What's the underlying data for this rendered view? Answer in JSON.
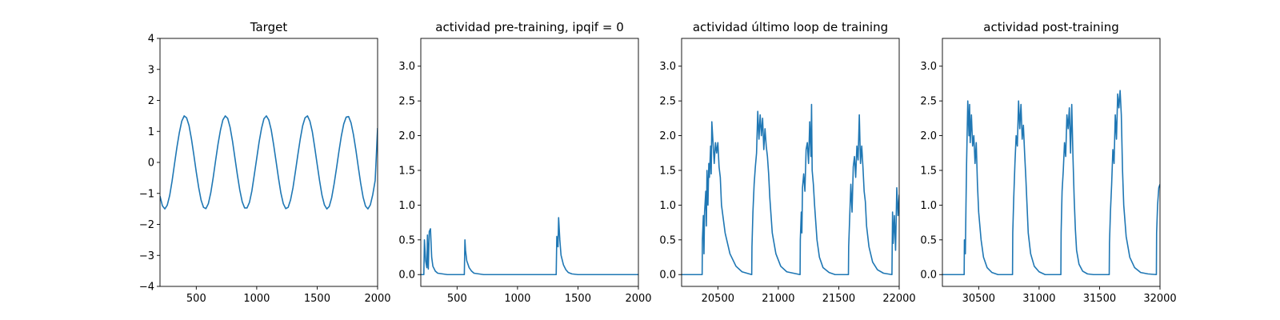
{
  "figure": {
    "background": "#ffffff",
    "line_color": "#1f77b4"
  },
  "chart_data": [
    {
      "type": "line",
      "title": "Target",
      "xlabel": "",
      "ylabel": "",
      "xlim": [
        200,
        2000
      ],
      "ylim": [
        -4,
        4
      ],
      "xticks": [
        500,
        1000,
        1500,
        2000
      ],
      "yticks": [
        -4,
        -3,
        -2,
        -1,
        0,
        1,
        2,
        3,
        4
      ],
      "grid": false,
      "series": [
        {
          "x": [
            200,
            220,
            240,
            260,
            280,
            300,
            320,
            340,
            360,
            380,
            400,
            420,
            440,
            460,
            480,
            500,
            520,
            540,
            560,
            580,
            600,
            620,
            640,
            660,
            680,
            700,
            720,
            740,
            760,
            780,
            800,
            820,
            840,
            860,
            880,
            900,
            920,
            940,
            960,
            980,
            1000,
            1020,
            1040,
            1060,
            1080,
            1100,
            1120,
            1140,
            1160,
            1180,
            1200,
            1220,
            1240,
            1260,
            1280,
            1300,
            1320,
            1340,
            1360,
            1380,
            1400,
            1420,
            1440,
            1460,
            1480,
            1500,
            1520,
            1540,
            1560,
            1580,
            1600,
            1620,
            1640,
            1660,
            1680,
            1700,
            1720,
            1740,
            1760,
            1780,
            1800,
            1820,
            1840,
            1860,
            1880,
            1900,
            1920,
            1940,
            1960,
            1980,
            2000
          ],
          "y": [
            -1.09,
            -1.4,
            -1.5,
            -1.38,
            -1.07,
            -0.6,
            -0.05,
            0.49,
            0.96,
            1.33,
            1.5,
            1.44,
            1.19,
            0.76,
            0.24,
            -0.31,
            -0.81,
            -1.22,
            -1.45,
            -1.49,
            -1.33,
            -0.98,
            -0.49,
            0.06,
            0.59,
            1.04,
            1.37,
            1.5,
            1.42,
            1.13,
            0.68,
            0.14,
            -0.4,
            -0.89,
            -1.27,
            -1.47,
            -1.47,
            -1.29,
            -0.92,
            -0.4,
            0.13,
            0.66,
            1.1,
            1.41,
            1.5,
            1.37,
            1.05,
            0.57,
            0.04,
            -0.5,
            -0.99,
            -1.33,
            -1.49,
            -1.45,
            -1.21,
            -0.82,
            -0.3,
            0.24,
            0.75,
            1.18,
            1.44,
            1.5,
            1.33,
            0.99,
            0.48,
            -0.06,
            -0.59,
            -1.06,
            -1.37,
            -1.5,
            -1.42,
            -1.14,
            -0.7,
            -0.19,
            0.35,
            0.85,
            1.24,
            1.46,
            1.48,
            1.28,
            0.9,
            0.41,
            -0.14,
            -0.67,
            -1.12,
            -1.41,
            -1.5,
            -1.37,
            -1.04,
            -0.58,
            1.11
          ]
        }
      ]
    },
    {
      "type": "line",
      "title": "actividad pre-training, ipqif = 0",
      "xlabel": "",
      "ylabel": "",
      "xlim": [
        200,
        2000
      ],
      "ylim": [
        -0.17,
        3.4
      ],
      "xticks": [
        500,
        1000,
        1500,
        2000
      ],
      "yticks": [
        0.0,
        0.5,
        1.0,
        1.5,
        2.0,
        2.5,
        3.0
      ],
      "grid": false,
      "series": [
        {
          "x": [
            200,
            225,
            230,
            240,
            250,
            255,
            262,
            270,
            280,
            290,
            300,
            320,
            340,
            380,
            420,
            560,
            565,
            570,
            580,
            600,
            620,
            640,
            680,
            720,
            1320,
            1325,
            1335,
            1340,
            1350,
            1360,
            1380,
            1400,
            1420,
            1450,
            1500,
            2000
          ],
          "y": [
            0,
            0,
            0.5,
            0.2,
            0.1,
            0.57,
            0.08,
            0.62,
            0.66,
            0.25,
            0.12,
            0.05,
            0.02,
            0.01,
            0,
            0,
            0.5,
            0.35,
            0.2,
            0.1,
            0.05,
            0.02,
            0.01,
            0,
            0,
            0.55,
            0.4,
            0.82,
            0.5,
            0.28,
            0.14,
            0.07,
            0.03,
            0.01,
            0,
            0
          ]
        }
      ]
    },
    {
      "type": "line",
      "title": "actividad último loop de training",
      "xlabel": "",
      "ylabel": "",
      "xlim": [
        20200,
        22000
      ],
      "ylim": [
        -0.17,
        3.4
      ],
      "xticks": [
        20500,
        21000,
        21500,
        22000
      ],
      "yticks": [
        0.0,
        0.5,
        1.0,
        1.5,
        2.0,
        2.5,
        3.0
      ],
      "grid": false,
      "series": [
        {
          "x": [
            20200,
            20370,
            20372,
            20380,
            20385,
            20390,
            20400,
            20405,
            20410,
            20418,
            20425,
            20430,
            20440,
            20445,
            20450,
            20460,
            20470,
            20480,
            20490,
            20500,
            20510,
            20520,
            20530,
            20560,
            20600,
            20650,
            20700,
            20780,
            20782,
            20790,
            20800,
            20810,
            20820,
            20830,
            20840,
            20850,
            20860,
            20870,
            20880,
            20890,
            20900,
            20910,
            20920,
            20930,
            20950,
            20980,
            21020,
            21070,
            21180,
            21182,
            21190,
            21195,
            21200,
            21210,
            21220,
            21230,
            21240,
            21250,
            21260,
            21270,
            21275,
            21280,
            21290,
            21300,
            21310,
            21320,
            21340,
            21370,
            21420,
            21470,
            21580,
            21582,
            21590,
            21600,
            21610,
            21620,
            21630,
            21640,
            21650,
            21660,
            21670,
            21680,
            21690,
            21700,
            21710,
            21720,
            21730,
            21750,
            21780,
            21820,
            21870,
            21940,
            21945,
            21950,
            21960,
            21970,
            21980,
            21990,
            22000
          ],
          "y": [
            0,
            0,
            0.5,
            0.85,
            0.3,
            0.9,
            1.2,
            0.7,
            1.5,
            1.0,
            1.6,
            1.4,
            1.85,
            1.45,
            2.2,
            1.9,
            1.6,
            1.9,
            1.75,
            1.9,
            1.55,
            1.4,
            1.0,
            0.6,
            0.3,
            0.12,
            0.04,
            0,
            0.4,
            0.9,
            1.3,
            1.55,
            1.75,
            2.35,
            1.95,
            2.3,
            2.0,
            2.25,
            1.8,
            2.1,
            1.85,
            1.7,
            1.45,
            1.1,
            0.6,
            0.3,
            0.12,
            0.04,
            0,
            0.5,
            0.9,
            0.6,
            1.25,
            1.45,
            1.2,
            1.8,
            1.9,
            1.6,
            2.2,
            1.7,
            2.45,
            1.5,
            1.3,
            1.0,
            0.75,
            0.5,
            0.25,
            0.1,
            0.03,
            0,
            0,
            0.4,
            0.8,
            1.3,
            0.9,
            1.55,
            1.7,
            1.4,
            1.85,
            1.65,
            2.3,
            1.6,
            1.85,
            1.55,
            1.2,
            1.05,
            0.7,
            0.4,
            0.18,
            0.07,
            0.02,
            0,
            0.9,
            0.45,
            0.85,
            0.35,
            1.25,
            0.85,
            1.15
          ]
        }
      ]
    },
    {
      "type": "line",
      "title": "actividad post-training",
      "xlabel": "",
      "ylabel": "",
      "xlim": [
        30200,
        32000
      ],
      "ylim": [
        -0.17,
        3.4
      ],
      "xticks": [
        30500,
        31000,
        31500,
        32000
      ],
      "yticks": [
        0.0,
        0.5,
        1.0,
        1.5,
        2.0,
        2.5,
        3.0
      ],
      "grid": false,
      "series": [
        {
          "x": [
            30200,
            30380,
            30382,
            30390,
            30395,
            30400,
            30410,
            30420,
            30425,
            30430,
            30440,
            30450,
            30460,
            30470,
            30480,
            30490,
            30500,
            30520,
            30540,
            30570,
            30610,
            30660,
            30780,
            30782,
            30790,
            30800,
            30810,
            30820,
            30830,
            30840,
            30850,
            30860,
            30870,
            30880,
            30890,
            30900,
            30910,
            30930,
            30960,
            31000,
            31050,
            31180,
            31182,
            31190,
            31200,
            31210,
            31220,
            31230,
            31240,
            31250,
            31260,
            31270,
            31280,
            31290,
            31300,
            31310,
            31330,
            31360,
            31400,
            31450,
            31580,
            31582,
            31590,
            31600,
            31610,
            31620,
            31630,
            31640,
            31650,
            31660,
            31670,
            31680,
            31690,
            31700,
            31720,
            31750,
            31790,
            31840,
            31900,
            31970,
            31972,
            31980,
            31990,
            32000
          ],
          "y": [
            0,
            0,
            0.5,
            0.3,
            1.0,
            1.6,
            2.5,
            2.0,
            2.45,
            1.9,
            2.3,
            1.85,
            2.0,
            1.6,
            1.9,
            1.3,
            0.9,
            0.5,
            0.25,
            0.1,
            0.03,
            0,
            0,
            0.6,
            1.1,
            1.6,
            2.0,
            1.85,
            2.5,
            2.1,
            2.45,
            1.95,
            2.15,
            1.75,
            1.4,
            1.0,
            0.6,
            0.3,
            0.12,
            0.04,
            0,
            0,
            0.6,
            1.2,
            1.5,
            1.9,
            1.7,
            2.3,
            2.1,
            2.4,
            1.75,
            2.45,
            1.7,
            1.1,
            0.65,
            0.35,
            0.15,
            0.05,
            0.01,
            0,
            0,
            0.45,
            0.9,
            1.3,
            1.8,
            1.6,
            2.3,
            1.95,
            2.6,
            2.4,
            2.65,
            2.3,
            1.5,
            1.0,
            0.55,
            0.25,
            0.1,
            0.03,
            0.01,
            0,
            0.6,
            1.0,
            1.25,
            1.3
          ]
        }
      ]
    }
  ]
}
